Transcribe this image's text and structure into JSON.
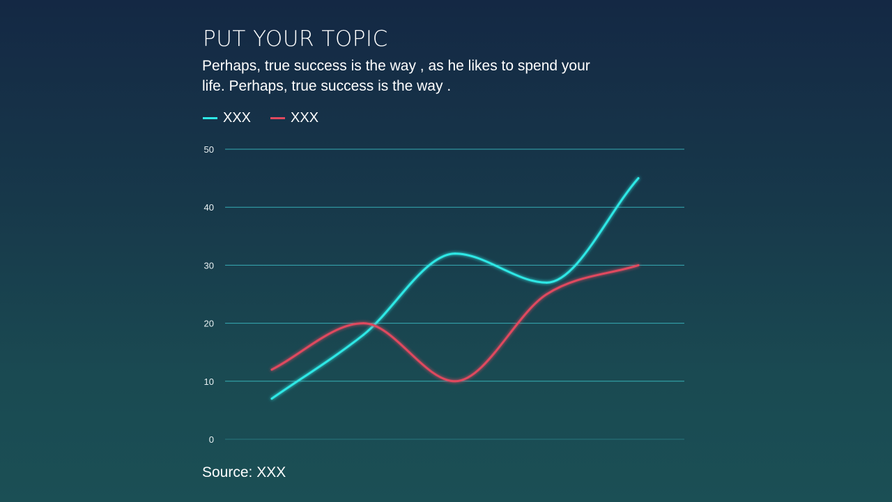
{
  "header": {
    "title": "PUT YOUR TOPIC",
    "subtitle": "Perhaps, true success is the way , as he likes to spend your life. Perhaps, true success is the way ."
  },
  "footer": {
    "source": "Source: XXX"
  },
  "colors": {
    "series1": "#2ee8e6",
    "series2": "#e0495e",
    "gridline": "#3fc9d0",
    "background": "#17384a"
  },
  "chart_data": {
    "type": "line",
    "smooth": true,
    "x": [
      1,
      2,
      3,
      4,
      5
    ],
    "series": [
      {
        "name": "XXX",
        "color": "#2ee8e6",
        "values": [
          7,
          18,
          32,
          27,
          45
        ]
      },
      {
        "name": "XXX",
        "color": "#e0495e",
        "values": [
          12,
          20,
          10,
          25,
          30
        ]
      }
    ],
    "ylim": [
      0,
      50
    ],
    "yticks": [
      "0",
      "10",
      "20",
      "30",
      "40",
      "50"
    ],
    "grid": true,
    "legend_placement": "top-left"
  }
}
